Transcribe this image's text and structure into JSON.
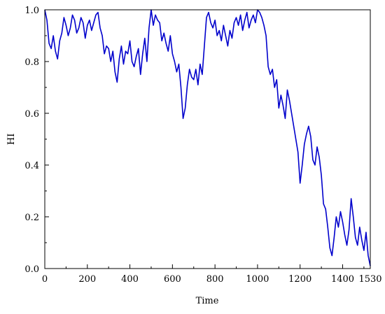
{
  "chart_data": {
    "type": "line",
    "title": "",
    "xlabel": "Time",
    "ylabel": "HI",
    "xlim": [
      0,
      1530
    ],
    "ylim": [
      0,
      1.0
    ],
    "x_ticks": [
      0,
      200,
      400,
      600,
      800,
      1000,
      1200,
      1400,
      1530
    ],
    "x_tick_labels": [
      "0",
      "200",
      "400",
      "600",
      "800",
      "1000",
      "1200",
      "1400",
      "1530"
    ],
    "y_ticks": [
      0,
      0.2,
      0.4,
      0.6,
      0.8,
      1.0
    ],
    "y_tick_labels": [
      "0.0",
      "0.2",
      "0.4",
      "0.6",
      "0.8",
      "1.0"
    ],
    "grid": false,
    "series": [
      {
        "color": "#0000cc",
        "x": [
          0,
          10,
          20,
          30,
          40,
          50,
          60,
          70,
          80,
          90,
          100,
          110,
          120,
          130,
          140,
          150,
          160,
          170,
          180,
          190,
          200,
          210,
          220,
          230,
          240,
          250,
          260,
          270,
          280,
          290,
          300,
          310,
          320,
          330,
          340,
          350,
          360,
          370,
          380,
          390,
          400,
          410,
          420,
          430,
          440,
          450,
          460,
          470,
          480,
          490,
          500,
          510,
          520,
          530,
          540,
          550,
          560,
          570,
          580,
          590,
          600,
          610,
          620,
          630,
          640,
          650,
          660,
          670,
          680,
          690,
          700,
          710,
          720,
          730,
          740,
          750,
          760,
          770,
          780,
          790,
          800,
          810,
          820,
          830,
          840,
          850,
          860,
          870,
          880,
          890,
          900,
          910,
          920,
          930,
          940,
          950,
          960,
          970,
          980,
          990,
          1000,
          1010,
          1020,
          1030,
          1040,
          1050,
          1060,
          1070,
          1080,
          1090,
          1100,
          1110,
          1120,
          1130,
          1140,
          1150,
          1160,
          1170,
          1180,
          1190,
          1200,
          1210,
          1220,
          1230,
          1240,
          1250,
          1260,
          1270,
          1280,
          1290,
          1300,
          1310,
          1320,
          1330,
          1340,
          1350,
          1360,
          1370,
          1380,
          1390,
          1400,
          1410,
          1420,
          1430,
          1440,
          1450,
          1460,
          1470,
          1480,
          1490,
          1500,
          1510,
          1520,
          1530
        ],
        "values": [
          1.0,
          0.96,
          0.87,
          0.85,
          0.9,
          0.84,
          0.81,
          0.88,
          0.91,
          0.97,
          0.94,
          0.9,
          0.93,
          0.98,
          0.96,
          0.91,
          0.93,
          0.97,
          0.95,
          0.89,
          0.94,
          0.96,
          0.92,
          0.95,
          0.98,
          0.99,
          0.93,
          0.9,
          0.83,
          0.86,
          0.85,
          0.8,
          0.84,
          0.76,
          0.72,
          0.81,
          0.86,
          0.79,
          0.84,
          0.83,
          0.88,
          0.8,
          0.78,
          0.82,
          0.85,
          0.75,
          0.83,
          0.89,
          0.8,
          0.93,
          1.0,
          0.94,
          0.98,
          0.96,
          0.95,
          0.88,
          0.91,
          0.87,
          0.84,
          0.9,
          0.83,
          0.8,
          0.76,
          0.79,
          0.7,
          0.58,
          0.62,
          0.71,
          0.77,
          0.74,
          0.73,
          0.77,
          0.71,
          0.79,
          0.75,
          0.86,
          0.97,
          0.99,
          0.95,
          0.93,
          0.96,
          0.9,
          0.92,
          0.88,
          0.94,
          0.9,
          0.86,
          0.92,
          0.89,
          0.95,
          0.97,
          0.94,
          0.98,
          0.92,
          0.96,
          0.99,
          0.93,
          0.96,
          0.98,
          0.95,
          1.0,
          0.99,
          0.97,
          0.94,
          0.9,
          0.78,
          0.75,
          0.77,
          0.7,
          0.73,
          0.62,
          0.67,
          0.63,
          0.58,
          0.69,
          0.65,
          0.6,
          0.55,
          0.5,
          0.45,
          0.33,
          0.4,
          0.48,
          0.52,
          0.55,
          0.51,
          0.42,
          0.4,
          0.47,
          0.43,
          0.36,
          0.25,
          0.23,
          0.16,
          0.08,
          0.05,
          0.12,
          0.2,
          0.16,
          0.22,
          0.18,
          0.13,
          0.09,
          0.15,
          0.27,
          0.2,
          0.12,
          0.09,
          0.16,
          0.11,
          0.07,
          0.14,
          0.05,
          0.01
        ]
      }
    ]
  }
}
